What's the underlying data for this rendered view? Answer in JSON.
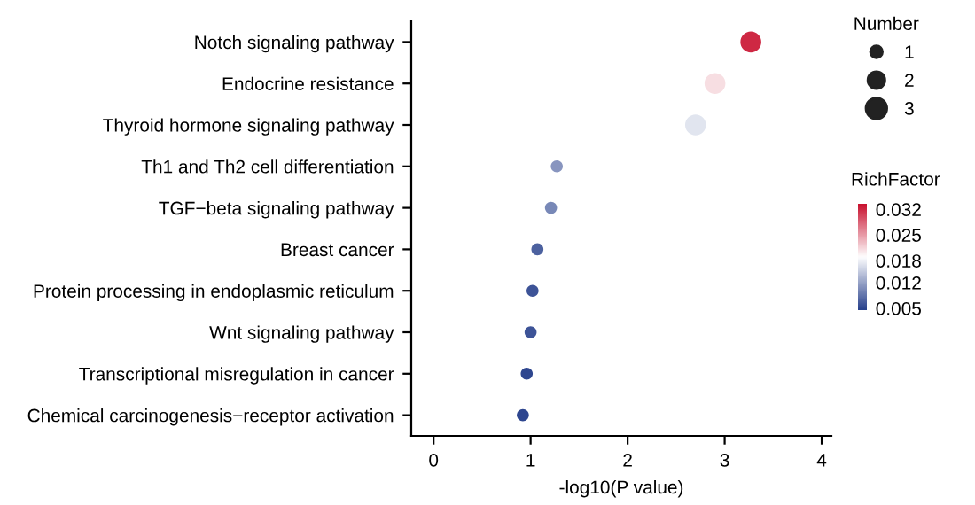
{
  "chart_data": {
    "type": "bubble",
    "orientation": "horizontal",
    "xlabel": "-log10(P value)",
    "legend_title": "Number",
    "clabel": "RichFactor",
    "grid": false,
    "categories": [
      "Notch signaling pathway",
      "Endocrine resistance",
      "Thyroid hormone signaling pathway",
      "Th1 and Th2 cell differentiation",
      "TGF−beta signaling pathway",
      "Breast cancer",
      "Protein processing in endoplasmic reticulum",
      "Wnt signaling pathway",
      "Transcriptional misregulation in cancer",
      "Chemical carcinogenesis−receptor activation"
    ],
    "values": [
      3.27,
      2.9,
      2.7,
      1.27,
      1.21,
      1.07,
      1.02,
      1.0,
      0.96,
      0.92
    ],
    "sizes": [
      3,
      3,
      3,
      1,
      1,
      1,
      1,
      1,
      1,
      1
    ],
    "size_legend": [
      1,
      2,
      3
    ],
    "cvalues": [
      0.032,
      0.021,
      0.017,
      0.011,
      0.01,
      0.007,
      0.006,
      0.006,
      0.005,
      0.005
    ],
    "clim": [
      0.0045,
      0.0335
    ],
    "cticks": [
      0.005,
      0.012,
      0.018,
      0.025,
      0.032
    ],
    "xlim": [
      -0.23,
      4.1
    ],
    "xticks": [
      0,
      1,
      2,
      3,
      4
    ]
  }
}
